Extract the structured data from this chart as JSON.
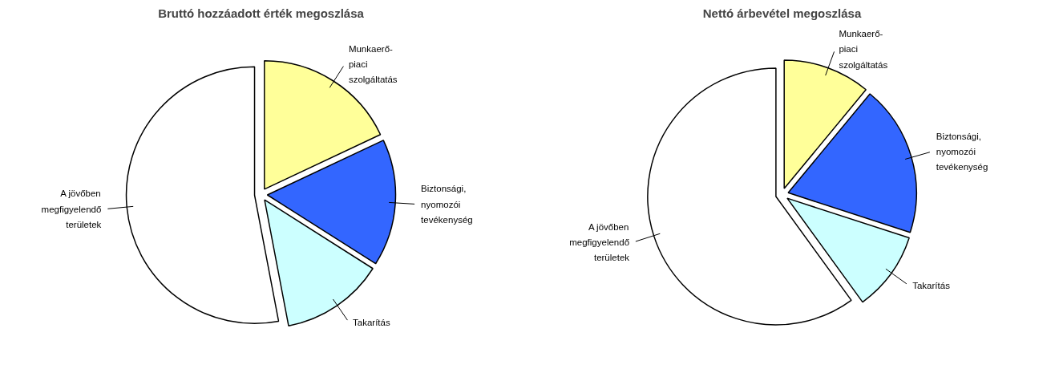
{
  "chart_data": [
    {
      "type": "pie",
      "title": "Bruttó hozzáadott érték megoszlása",
      "categories": [
        "Munkaerő-\npiaci\nszolgáltatás",
        "Biztonsági,\nnyomozói\ntevékenység",
        "Takarítás",
        "A jövőben\nmegfigyelendő\nterületek"
      ],
      "values": [
        18,
        16,
        13,
        53
      ],
      "colors": [
        "#ffff99",
        "#3366ff",
        "#ccffff",
        "#ffffff"
      ]
    },
    {
      "type": "pie",
      "title": "Nettó árbevétel megoszlása",
      "categories": [
        "Munkaerő-\npiaci\nszolgáltatás",
        "Biztonsági,\nnyomozói\ntevékenység",
        "Takarítás",
        "A jövőben\nmegfigyelendő\nterületek"
      ],
      "values": [
        11,
        19,
        10,
        60
      ],
      "colors": [
        "#ffff99",
        "#3366ff",
        "#ccffff",
        "#ffffff"
      ]
    }
  ]
}
